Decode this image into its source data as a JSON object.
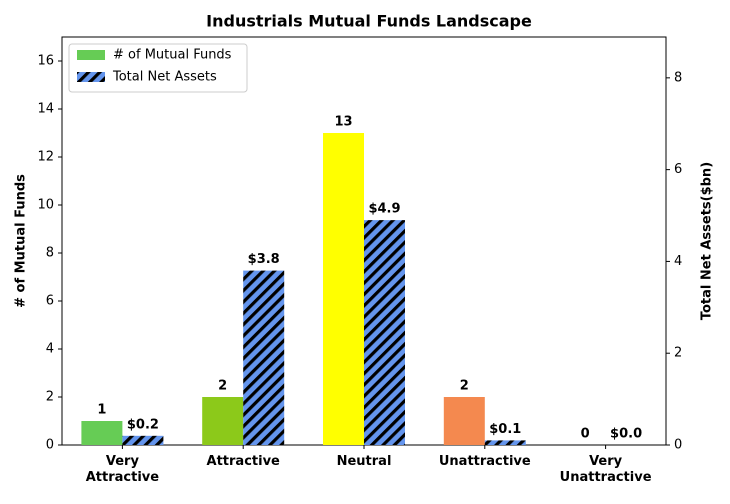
{
  "chart_data": {
    "type": "bar",
    "title": "Industrials Mutual Funds Landscape",
    "categories": [
      "Very Attractive",
      "Attractive",
      "Neutral",
      "Unattractive",
      "Very Unattractive"
    ],
    "series": [
      {
        "name": "# of Mutual Funds",
        "color": "#66cc55",
        "colors": [
          "#66cc55",
          "#8cc91a",
          "#ffff00",
          "#f4894f",
          "#cccccc"
        ],
        "values": [
          1,
          2,
          13,
          2,
          0
        ]
      },
      {
        "name": "Total Net Assets",
        "color": "#6495ed",
        "hatch": "//",
        "axis": "y2",
        "values": [
          0.2,
          3.8,
          4.9,
          0.1,
          0.0
        ],
        "value_labels": [
          "$0.2",
          "$3.8",
          "$4.9",
          "$0.1",
          "$0.0"
        ]
      }
    ],
    "ylabel": "# of Mutual Funds",
    "y2label": "Total Net Assets($bn)",
    "ylim": [
      0,
      17
    ],
    "yticks": [
      0,
      2,
      4,
      6,
      8,
      10,
      12,
      14,
      16
    ],
    "y2lim": [
      0,
      8.89
    ],
    "y2ticks": [
      0,
      2,
      4,
      6,
      8
    ],
    "legend": "upper left",
    "grid": false
  }
}
